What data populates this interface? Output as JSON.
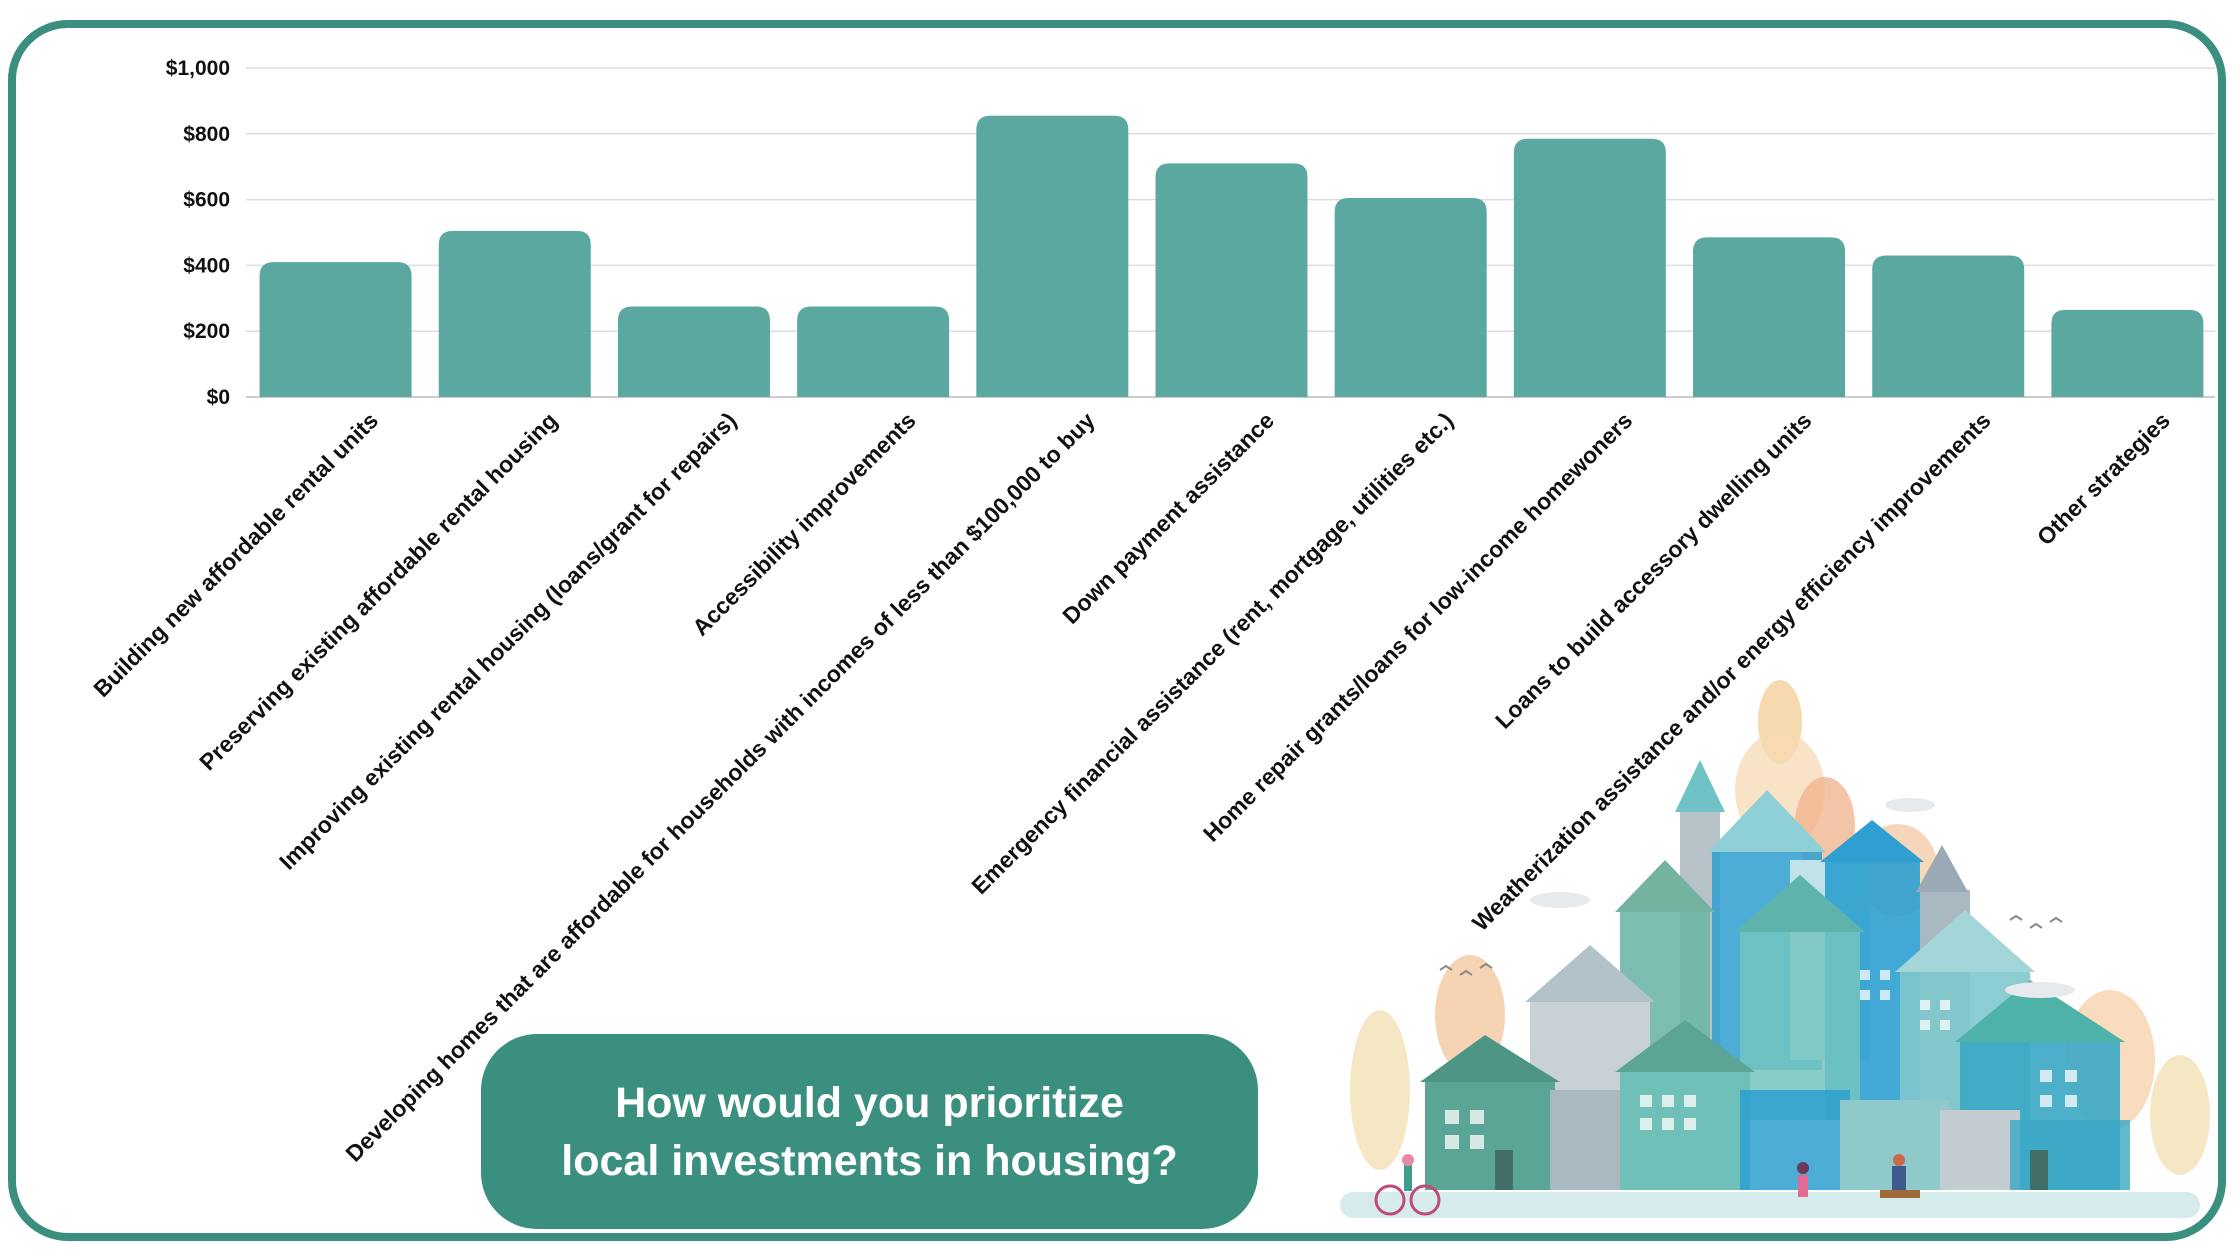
{
  "title": {
    "line1": "How would you prioritize",
    "line2": "local investments in housing?"
  },
  "colors": {
    "bar": "#5ba8a0",
    "frame": "#3a8f7f",
    "title_bg": "#3a8f7f",
    "grid": "#dddddd"
  },
  "illustration": {
    "icon": "city-houses-illustration"
  },
  "chart_data": {
    "type": "bar",
    "categories": [
      "Building new affordable rental units",
      "Preserving existing affordable rental housing",
      "Improving existing rental housing (loans/grant for repairs)",
      "Accessibility improvements",
      "Developing homes that are affordable for households with incomes of less than $100,000 to buy",
      "Down payment assistance",
      "Emergency financial assistance (rent, mortgage, utilities etc.)",
      "Home repair grants/loans for low-income homewoners",
      "Loans to build accessory dwelling units",
      "Weatherization assistance and/or energy efficiency improvements",
      "Other strategies"
    ],
    "values": [
      410,
      505,
      275,
      275,
      855,
      710,
      605,
      785,
      485,
      430,
      265
    ],
    "yticks": [
      "$0",
      "$200",
      "$400",
      "$600",
      "$800",
      "$1,000"
    ],
    "ytick_values": [
      0,
      200,
      400,
      600,
      800,
      1000
    ],
    "ylim": [
      0,
      1000
    ],
    "grid": true,
    "legend": "none"
  }
}
